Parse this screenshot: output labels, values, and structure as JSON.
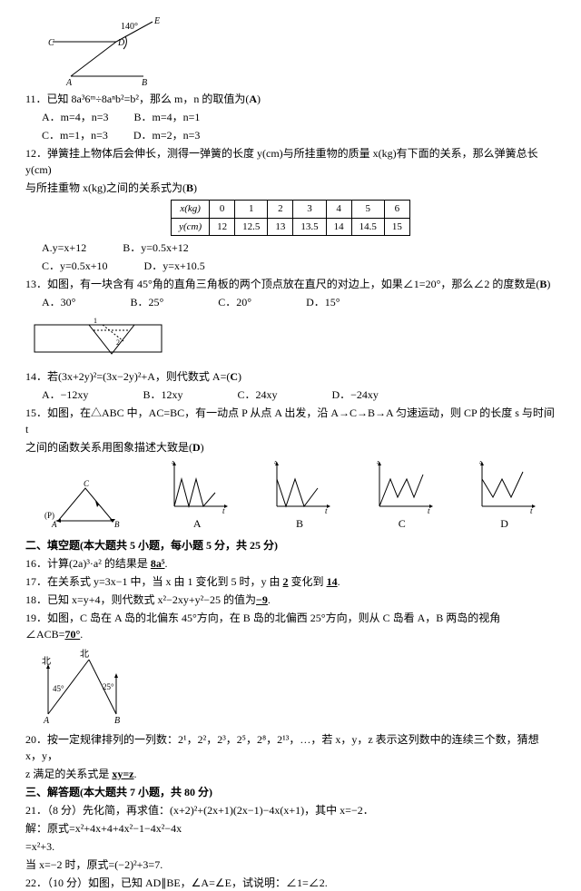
{
  "fig10": {
    "labelA": "A",
    "labelB": "B",
    "labelC": "C",
    "labelD": "D",
    "labelE": "E",
    "angle": "140°"
  },
  "q11": {
    "stem": "11．已知 8a³6ᵐ÷8aⁿb²=b²，那么 m，n 的取值为(",
    "ans": "A",
    "tail": ")",
    "a": "A．m=4，n=3",
    "b": "B．m=4，n=1",
    "c": "C．m=1，n=3",
    "d": "D．m=2，n=3"
  },
  "q12": {
    "line1": "12．弹簧挂上物体后会伸长，测得一弹簧的长度 y(cm)与所挂重物的质量 x(kg)有下面的关系，那么弹簧总长 y(cm)",
    "line2": "与所挂重物 x(kg)之间的关系式为(",
    "ans": "B",
    "tail": ")",
    "table": {
      "head": [
        "x(kg)",
        "0",
        "1",
        "2",
        "3",
        "4",
        "5",
        "6"
      ],
      "row": [
        "y(cm)",
        "12",
        "12.5",
        "13",
        "13.5",
        "14",
        "14.5",
        "15"
      ]
    },
    "a": "A.y=x+12",
    "b": "B．y=0.5x+12",
    "c": "C．y=0.5x+10",
    "d": "D．y=x+10.5"
  },
  "q13": {
    "stem": "13．如图，有一块含有 45°角的直角三角板的两个顶点放在直尺的对边上，如果∠1=20°，那么∠2 的度数是(",
    "ans": "B",
    "tail": ")",
    "a": "A．30°",
    "b": "B．25°",
    "c": "C．20°",
    "d": "D．15°"
  },
  "q14": {
    "stem": "14．若(3x+2y)²=(3x−2y)²+A，则代数式 A=(",
    "ans": "C",
    "tail": ")",
    "a": "A．−12xy",
    "b": "B．12xy",
    "c": "C．24xy",
    "d": "D．−24xy"
  },
  "q15": {
    "line1": "15．如图，在△ABC 中，AC=BC，有一动点 P 从点 A 出发，沿 A→C→B→A 匀速运动，则 CP 的长度 s 与时间 t",
    "line2": "之间的函数关系用图象描述大致是(",
    "ans": "D",
    "tail": ")",
    "labA": "A",
    "labB": "B",
    "labC": "C",
    "labD": "D",
    "labP": "(P)",
    "axS": "s",
    "axT": "t"
  },
  "sec2": "二、填空题(本大题共 5 小题，每小题 5 分，共 25 分)",
  "q16": {
    "pre": "16．计算(2a)³·a² 的结果是 ",
    "ans": "8a⁵"
  },
  "q17": {
    "pre": "17．在关系式 y=3x−1 中，当 x 由 1 变化到 5 时，y 由 ",
    "a": "2",
    "mid": " 变化到 ",
    "b": "14",
    "post": "."
  },
  "q18": {
    "pre": "18．已知 x=y+4，则代数式 x²−2xy+y²−25 的值为",
    "ans": "−9",
    "post": "."
  },
  "q19": {
    "pre": "19．如图，C 岛在 A 岛的北偏东 45°方向，在 B 岛的北偏西 25°方向，则从 C 岛看 A，B 两岛的视角∠ACB=",
    "ans": "70°",
    "post": "."
  },
  "fig19": {
    "bei": "北",
    "a45": "45°",
    "a25": "25°",
    "A": "A",
    "B": "B"
  },
  "q20": {
    "line1": "20．按一定规律排列的一列数：2¹，2²，2³，2⁵，2⁸，2¹³，…，若 x，y，z 表示这列数中的连续三个数，猜想 x，y，",
    "line2": "z 满足的关系式是 ",
    "ans": "xy=z",
    "post": "."
  },
  "sec3": "三、解答题(本大题共 7 小题，共 80 分)",
  "q21": {
    "l1": "21．（8 分）先化简，再求值：(x+2)²+(2x+1)(2x−1)−4x(x+1)，其中 x=−2．",
    "l2": "解：原式=x²+4x+4+4x²−1−4x²−4x",
    "l3": "=x²+3.",
    "l4": "当 x=−2 时，原式=(−2)²+3=7."
  },
  "q22": "22．（10 分）如图，已知 AD∥BE，∠A=∠E，试说明：∠1=∠2."
}
